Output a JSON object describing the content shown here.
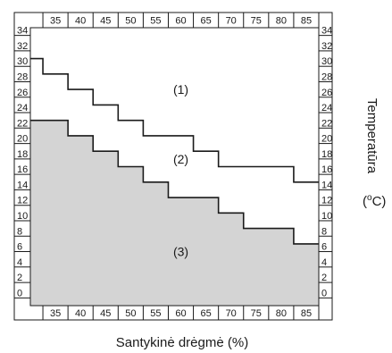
{
  "chart_data": {
    "type": "line",
    "xlabel": "Santykinė drėgmė (%)",
    "ylabel": "Temperatūra",
    "yunit_base": "(",
    "yunit_sup": "o",
    "yunit_tail": "C)",
    "x_ticks": [
      35,
      40,
      45,
      50,
      55,
      60,
      65,
      70,
      75,
      80,
      85
    ],
    "y_ticks": [
      0,
      2,
      4,
      6,
      8,
      10,
      12,
      14,
      16,
      18,
      20,
      22,
      24,
      26,
      28,
      30,
      32,
      34
    ],
    "xlim": [
      30,
      87.5
    ],
    "ylim": [
      -1,
      35
    ],
    "grid": false,
    "series": [
      {
        "values": [
          [
            30,
            31
          ],
          [
            32.5,
            31
          ],
          [
            32.5,
            29
          ],
          [
            37.5,
            29
          ],
          [
            37.5,
            27
          ],
          [
            42.5,
            27
          ],
          [
            42.5,
            25
          ],
          [
            47.5,
            25
          ],
          [
            47.5,
            23
          ],
          [
            52.5,
            23
          ],
          [
            52.5,
            21
          ],
          [
            62.5,
            21
          ],
          [
            62.5,
            19
          ],
          [
            67.5,
            19
          ],
          [
            67.5,
            17
          ],
          [
            82.5,
            17
          ],
          [
            82.5,
            15
          ],
          [
            87.5,
            15
          ]
        ]
      },
      {
        "values": [
          [
            30,
            23
          ],
          [
            37.5,
            23
          ],
          [
            37.5,
            21
          ],
          [
            42.5,
            21
          ],
          [
            42.5,
            19
          ],
          [
            47.5,
            19
          ],
          [
            47.5,
            17
          ],
          [
            52.5,
            17
          ],
          [
            52.5,
            15
          ],
          [
            57.5,
            15
          ],
          [
            57.5,
            13
          ],
          [
            67.5,
            13
          ],
          [
            67.5,
            11
          ],
          [
            72.5,
            11
          ],
          [
            72.5,
            9
          ],
          [
            82.5,
            9
          ],
          [
            82.5,
            7
          ],
          [
            87.5,
            7
          ]
        ]
      }
    ],
    "regions": [
      {
        "label": "(1)",
        "x": 60,
        "y": 27
      },
      {
        "label": "(2)",
        "x": 60,
        "y": 18
      },
      {
        "label": "(3)",
        "x": 60,
        "y": 6
      }
    ],
    "colors": {
      "fill_region_3": "#d4d4d4",
      "line": "#1a1a1a"
    }
  }
}
